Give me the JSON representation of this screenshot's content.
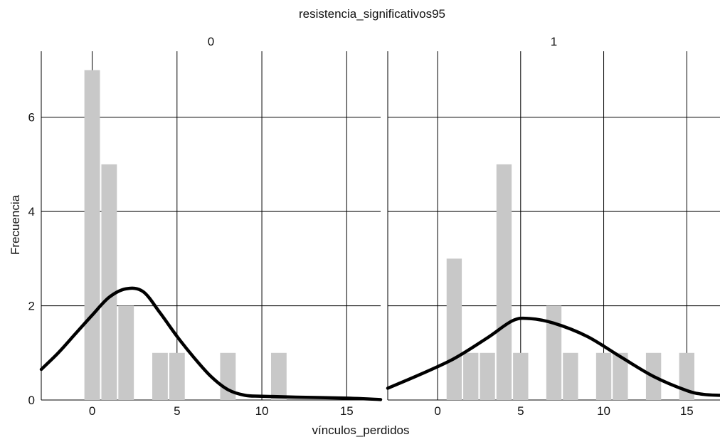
{
  "chart_data": {
    "type": "bar",
    "title": "resistencia_significativos95",
    "xlabel": "vínculos_perdidos",
    "ylabel": "Frecuencia",
    "xlim": [
      -3,
      17
    ],
    "ylim": [
      0,
      7.4
    ],
    "x_ticks": [
      "0",
      "5",
      "10",
      "15"
    ],
    "x_tick_values": [
      0,
      5,
      10,
      15
    ],
    "y_ticks": [
      "0",
      "2",
      "4",
      "6"
    ],
    "y_tick_values": [
      0,
      2,
      4,
      6
    ],
    "grid": true,
    "bar_color": "#c8c8c8",
    "line_color": "#000000",
    "bin_width": 1,
    "panels": [
      {
        "label": "0",
        "histogram": [
          {
            "x": 0,
            "count": 7
          },
          {
            "x": 1,
            "count": 5
          },
          {
            "x": 2,
            "count": 2
          },
          {
            "x": 4,
            "count": 1
          },
          {
            "x": 5,
            "count": 1
          },
          {
            "x": 8,
            "count": 1
          },
          {
            "x": 11,
            "count": 1
          }
        ],
        "density_curve": [
          {
            "x": -3,
            "y": 0.65
          },
          {
            "x": -2,
            "y": 1.0
          },
          {
            "x": -1,
            "y": 1.4
          },
          {
            "x": 0,
            "y": 1.8
          },
          {
            "x": 1,
            "y": 2.18
          },
          {
            "x": 2,
            "y": 2.36
          },
          {
            "x": 3,
            "y": 2.3
          },
          {
            "x": 4,
            "y": 1.85
          },
          {
            "x": 5,
            "y": 1.35
          },
          {
            "x": 6,
            "y": 0.9
          },
          {
            "x": 7,
            "y": 0.5
          },
          {
            "x": 8,
            "y": 0.22
          },
          {
            "x": 9,
            "y": 0.1
          },
          {
            "x": 10,
            "y": 0.08
          },
          {
            "x": 12,
            "y": 0.06
          },
          {
            "x": 15,
            "y": 0.04
          },
          {
            "x": 17,
            "y": 0.01
          }
        ]
      },
      {
        "label": "1",
        "histogram": [
          {
            "x": 1,
            "count": 3
          },
          {
            "x": 2,
            "count": 1
          },
          {
            "x": 3,
            "count": 1
          },
          {
            "x": 4,
            "count": 5
          },
          {
            "x": 5,
            "count": 1
          },
          {
            "x": 7,
            "count": 2
          },
          {
            "x": 8,
            "count": 1
          },
          {
            "x": 10,
            "count": 1
          },
          {
            "x": 11,
            "count": 1
          },
          {
            "x": 13,
            "count": 1
          },
          {
            "x": 15,
            "count": 1
          }
        ],
        "density_curve": [
          {
            "x": -3,
            "y": 0.25
          },
          {
            "x": -1,
            "y": 0.55
          },
          {
            "x": 1,
            "y": 0.88
          },
          {
            "x": 3,
            "y": 1.32
          },
          {
            "x": 4.5,
            "y": 1.68
          },
          {
            "x": 5.5,
            "y": 1.73
          },
          {
            "x": 7,
            "y": 1.63
          },
          {
            "x": 9,
            "y": 1.35
          },
          {
            "x": 11,
            "y": 0.92
          },
          {
            "x": 13,
            "y": 0.5
          },
          {
            "x": 15,
            "y": 0.2
          },
          {
            "x": 16,
            "y": 0.12
          },
          {
            "x": 17,
            "y": 0.1
          }
        ]
      }
    ]
  }
}
